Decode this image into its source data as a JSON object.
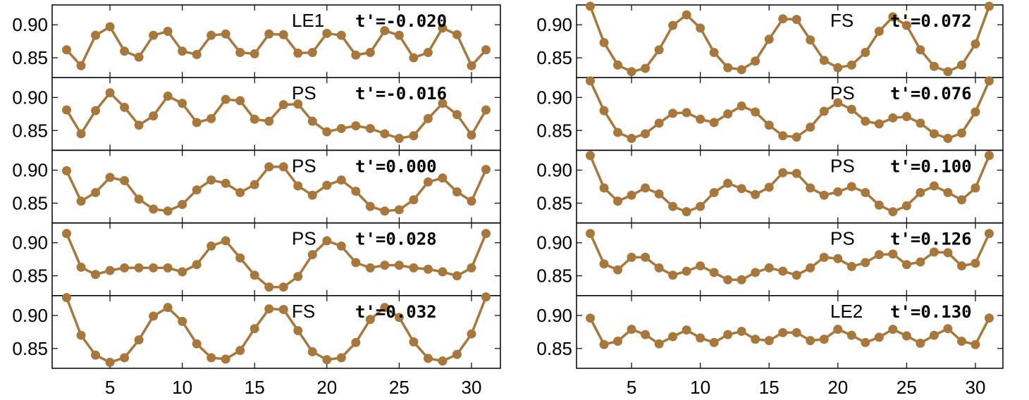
{
  "chart_data": {
    "type": "line",
    "x": [
      2,
      3,
      4,
      5,
      6,
      7,
      8,
      9,
      10,
      11,
      12,
      13,
      14,
      15,
      16,
      17,
      18,
      19,
      20,
      21,
      22,
      23,
      24,
      25,
      26,
      27,
      28,
      29,
      30,
      31
    ],
    "xlim": [
      1,
      32
    ],
    "ylim": [
      0.82,
      0.93
    ],
    "x_ticks": [
      "5",
      "10",
      "15",
      "20",
      "25",
      "30"
    ],
    "y_ticks": [
      "0.90",
      "0.85"
    ],
    "series_color": "#a8773c",
    "columns": [
      {
        "panels": [
          {
            "label": "LE1",
            "t_label": "t'",
            "t_value": "=-0.020",
            "values": [
              0.862,
              0.838,
              0.884,
              0.897,
              0.86,
              0.851,
              0.884,
              0.89,
              0.86,
              0.855,
              0.884,
              0.886,
              0.858,
              0.856,
              0.886,
              0.885,
              0.857,
              0.858,
              0.887,
              0.884,
              0.854,
              0.858,
              0.891,
              0.884,
              0.85,
              0.858,
              0.895,
              0.885,
              0.838,
              0.862
            ]
          },
          {
            "label": "PS",
            "t_label": "t'",
            "t_value": "=-0.016",
            "values": [
              0.881,
              0.845,
              0.88,
              0.907,
              0.885,
              0.858,
              0.872,
              0.902,
              0.891,
              0.862,
              0.868,
              0.897,
              0.895,
              0.867,
              0.864,
              0.889,
              0.89,
              0.864,
              0.848,
              0.853,
              0.857,
              0.853,
              0.845,
              0.838,
              0.842,
              0.868,
              0.891,
              0.874,
              0.843,
              0.881
            ]
          },
          {
            "label": "PS",
            "t_label": "t'",
            "t_value": "=0.000",
            "values": [
              0.899,
              0.853,
              0.866,
              0.889,
              0.884,
              0.856,
              0.841,
              0.838,
              0.848,
              0.87,
              0.885,
              0.88,
              0.866,
              0.878,
              0.905,
              0.905,
              0.876,
              0.862,
              0.877,
              0.885,
              0.868,
              0.845,
              0.838,
              0.84,
              0.855,
              0.882,
              0.888,
              0.867,
              0.853,
              0.901
            ]
          },
          {
            "label": "PS",
            "t_label": "t'",
            "t_value": "=0.028",
            "values": [
              0.914,
              0.863,
              0.852,
              0.858,
              0.862,
              0.862,
              0.862,
              0.862,
              0.856,
              0.867,
              0.895,
              0.903,
              0.877,
              0.851,
              0.833,
              0.833,
              0.849,
              0.882,
              0.903,
              0.895,
              0.87,
              0.862,
              0.866,
              0.866,
              0.862,
              0.86,
              0.856,
              0.85,
              0.862,
              0.914
            ]
          },
          {
            "label": "FS",
            "t_label": "t'",
            "t_value": "=0.032",
            "values": [
              0.927,
              0.87,
              0.84,
              0.829,
              0.836,
              0.863,
              0.899,
              0.912,
              0.891,
              0.857,
              0.836,
              0.834,
              0.847,
              0.88,
              0.91,
              0.909,
              0.877,
              0.845,
              0.833,
              0.836,
              0.859,
              0.894,
              0.912,
              0.897,
              0.86,
              0.835,
              0.831,
              0.841,
              0.872,
              0.928
            ]
          }
        ]
      },
      {
        "panels": [
          {
            "label": "FS",
            "t_label": "t'",
            "t_value": "=0.072",
            "values": [
              0.928,
              0.873,
              0.839,
              0.829,
              0.834,
              0.862,
              0.899,
              0.915,
              0.895,
              0.858,
              0.835,
              0.832,
              0.845,
              0.878,
              0.909,
              0.908,
              0.877,
              0.846,
              0.835,
              0.839,
              0.858,
              0.89,
              0.912,
              0.899,
              0.862,
              0.837,
              0.829,
              0.839,
              0.871,
              0.928
            ]
          },
          {
            "label": "PS",
            "t_label": "t'",
            "t_value": "=0.076",
            "values": [
              0.925,
              0.88,
              0.847,
              0.838,
              0.845,
              0.861,
              0.876,
              0.877,
              0.867,
              0.862,
              0.875,
              0.887,
              0.878,
              0.858,
              0.842,
              0.84,
              0.855,
              0.879,
              0.892,
              0.882,
              0.864,
              0.86,
              0.869,
              0.871,
              0.861,
              0.845,
              0.838,
              0.846,
              0.878,
              0.925
            ]
          },
          {
            "label": "PS",
            "t_label": "t'",
            "t_value": "=0.100",
            "values": [
              0.922,
              0.873,
              0.853,
              0.862,
              0.873,
              0.864,
              0.845,
              0.837,
              0.845,
              0.866,
              0.88,
              0.872,
              0.863,
              0.874,
              0.896,
              0.895,
              0.873,
              0.862,
              0.867,
              0.875,
              0.866,
              0.847,
              0.837,
              0.846,
              0.866,
              0.876,
              0.866,
              0.855,
              0.873,
              0.922
            ]
          },
          {
            "label": "PS",
            "t_label": "t'",
            "t_value": "=0.126",
            "values": [
              0.914,
              0.868,
              0.859,
              0.878,
              0.878,
              0.862,
              0.851,
              0.857,
              0.865,
              0.855,
              0.844,
              0.844,
              0.855,
              0.862,
              0.857,
              0.851,
              0.862,
              0.878,
              0.876,
              0.864,
              0.87,
              0.882,
              0.883,
              0.867,
              0.871,
              0.886,
              0.885,
              0.865,
              0.869,
              0.914
            ]
          },
          {
            "label": "LE2",
            "t_label": "t'",
            "t_value": "=0.130",
            "values": [
              0.896,
              0.856,
              0.861,
              0.879,
              0.871,
              0.857,
              0.868,
              0.878,
              0.866,
              0.859,
              0.871,
              0.876,
              0.864,
              0.862,
              0.874,
              0.874,
              0.862,
              0.864,
              0.879,
              0.87,
              0.859,
              0.867,
              0.879,
              0.869,
              0.858,
              0.87,
              0.88,
              0.861,
              0.856,
              0.896
            ]
          }
        ]
      }
    ]
  }
}
